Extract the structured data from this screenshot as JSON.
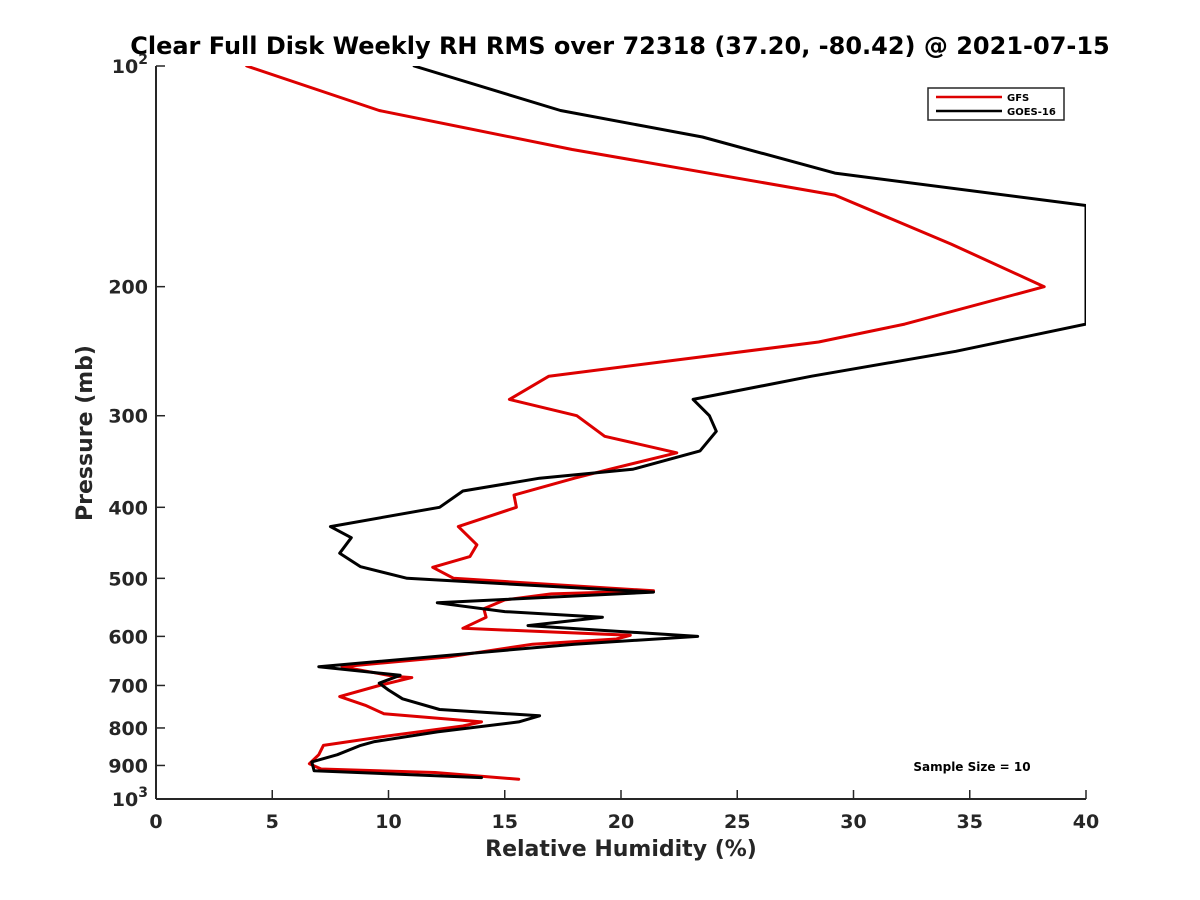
{
  "chart_data": {
    "type": "line",
    "title": "Clear Full Disk Weekly RH RMS over 72318 (37.20, -80.42) @ 2021-07-15",
    "xlabel": "Relative Humidity (%)",
    "ylabel": "Pressure (mb)",
    "xlim": [
      0,
      40
    ],
    "ylim": [
      100,
      1000
    ],
    "yscale": "log",
    "y_reversed": true,
    "xticks": [
      0,
      5,
      10,
      15,
      20,
      25,
      30,
      35,
      40
    ],
    "yticks": [
      {
        "value": 100,
        "base": "10",
        "exp": "2"
      },
      {
        "value": 200,
        "label": "200"
      },
      {
        "value": 300,
        "label": "300"
      },
      {
        "value": 400,
        "label": "400"
      },
      {
        "value": 500,
        "label": "500"
      },
      {
        "value": 600,
        "label": "600"
      },
      {
        "value": 700,
        "label": "700"
      },
      {
        "value": 800,
        "label": "800"
      },
      {
        "value": 900,
        "label": "900"
      },
      {
        "value": 1000,
        "base": "10",
        "exp": "3"
      }
    ],
    "legend_position": "top-right",
    "grid": false,
    "annotation": "Sample Size = 10",
    "series": [
      {
        "name": "GFS",
        "color": "#dd0000",
        "points": [
          [
            3.9,
            100
          ],
          [
            9.6,
            115
          ],
          [
            17.9,
            130
          ],
          [
            29.2,
            150
          ],
          [
            34.2,
            175
          ],
          [
            38.2,
            200
          ],
          [
            32.2,
            225
          ],
          [
            28.5,
            238
          ],
          [
            16.9,
            265
          ],
          [
            15.2,
            285
          ],
          [
            18.1,
            300
          ],
          [
            19.3,
            320
          ],
          [
            22.4,
            337
          ],
          [
            19.5,
            355
          ],
          [
            18.0,
            365
          ],
          [
            15.4,
            385
          ],
          [
            15.5,
            400
          ],
          [
            13.0,
            425
          ],
          [
            13.8,
            450
          ],
          [
            13.5,
            467
          ],
          [
            11.9,
            483
          ],
          [
            12.8,
            500
          ],
          [
            21.4,
            520
          ],
          [
            17.0,
            525
          ],
          [
            15.0,
            535
          ],
          [
            14.1,
            550
          ],
          [
            14.2,
            565
          ],
          [
            13.2,
            585
          ],
          [
            20.4,
            598
          ],
          [
            19.8,
            605
          ],
          [
            16.2,
            615
          ],
          [
            12.6,
            640
          ],
          [
            8.0,
            660
          ],
          [
            10.2,
            680
          ],
          [
            11.0,
            683
          ],
          [
            9.6,
            700
          ],
          [
            7.9,
            725
          ],
          [
            9.0,
            745
          ],
          [
            9.8,
            765
          ],
          [
            14.0,
            785
          ],
          [
            13.2,
            795
          ],
          [
            10.0,
            820
          ],
          [
            7.2,
            845
          ],
          [
            7.0,
            870
          ],
          [
            6.6,
            895
          ],
          [
            7.1,
            910
          ],
          [
            12.0,
            920
          ],
          [
            15.6,
            940
          ]
        ]
      },
      {
        "name": "GOES-16",
        "color": "#000000",
        "points": [
          [
            11.1,
            100
          ],
          [
            17.4,
            115
          ],
          [
            23.5,
            125
          ],
          [
            29.2,
            140
          ],
          [
            40.0,
            155
          ],
          [
            40.0,
            225
          ],
          [
            34.4,
            245
          ],
          [
            28.2,
            265
          ],
          [
            23.1,
            285
          ],
          [
            23.8,
            300
          ],
          [
            24.1,
            315
          ],
          [
            23.4,
            335
          ],
          [
            20.5,
            355
          ],
          [
            16.5,
            365
          ],
          [
            13.2,
            380
          ],
          [
            12.2,
            400
          ],
          [
            7.5,
            425
          ],
          [
            8.4,
            440
          ],
          [
            7.9,
            462
          ],
          [
            8.8,
            482
          ],
          [
            10.8,
            500
          ],
          [
            21.4,
            522
          ],
          [
            12.1,
            540
          ],
          [
            15.0,
            555
          ],
          [
            19.2,
            565
          ],
          [
            16.0,
            580
          ],
          [
            23.3,
            600
          ],
          [
            18.0,
            615
          ],
          [
            7.0,
            660
          ],
          [
            10.5,
            678
          ],
          [
            9.6,
            695
          ],
          [
            10.0,
            710
          ],
          [
            10.6,
            730
          ],
          [
            12.2,
            755
          ],
          [
            16.5,
            770
          ],
          [
            15.6,
            785
          ],
          [
            12.1,
            810
          ],
          [
            9.4,
            835
          ],
          [
            8.8,
            845
          ],
          [
            7.8,
            870
          ],
          [
            6.7,
            890
          ],
          [
            6.8,
            915
          ],
          [
            14.0,
            935
          ]
        ]
      }
    ]
  }
}
